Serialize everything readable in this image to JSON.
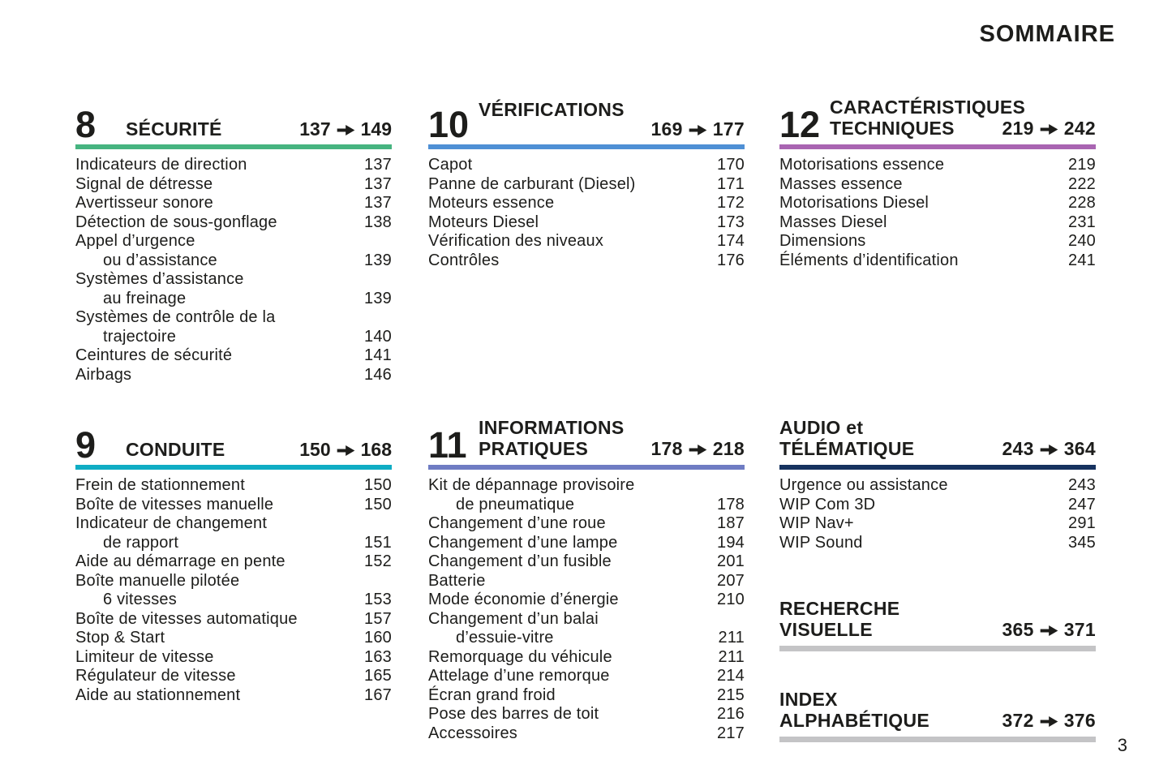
{
  "page": {
    "title": "SOMMAIRE",
    "page_number": "3"
  },
  "text_color": "#1d1d1b",
  "sections": [
    {
      "number": "8",
      "title_lines": [
        "SÉCURITÉ"
      ],
      "range": {
        "from": "137",
        "to": "149"
      },
      "color": "#46b480",
      "items": [
        {
          "lines": [
            "Indicateurs de direction"
          ],
          "page": "137"
        },
        {
          "lines": [
            "Signal de détresse"
          ],
          "page": "137"
        },
        {
          "lines": [
            "Avertisseur sonore"
          ],
          "page": "137"
        },
        {
          "lines": [
            "Détection de sous-gonflage"
          ],
          "page": "138"
        },
        {
          "lines": [
            "Appel d’urgence",
            "ou d’assistance"
          ],
          "page": "139"
        },
        {
          "lines": [
            "Systèmes d’assistance",
            "au freinage"
          ],
          "page": "139"
        },
        {
          "lines": [
            "Systèmes de contrôle de la",
            "trajectoire"
          ],
          "page": "140"
        },
        {
          "lines": [
            "Ceintures de sécurité"
          ],
          "page": "141"
        },
        {
          "lines": [
            "Airbags"
          ],
          "page": "146"
        }
      ]
    },
    {
      "number": "9",
      "title_lines": [
        "CONDUITE"
      ],
      "range": {
        "from": "150",
        "to": "168"
      },
      "color": "#0fadc4",
      "items": [
        {
          "lines": [
            "Frein de stationnement"
          ],
          "page": "150"
        },
        {
          "lines": [
            "Boîte de vitesses manuelle"
          ],
          "page": "150"
        },
        {
          "lines": [
            "Indicateur de changement",
            "de rapport"
          ],
          "page": "151"
        },
        {
          "lines": [
            "Aide au démarrage en pente"
          ],
          "page": "152"
        },
        {
          "lines": [
            "Boîte manuelle pilotée",
            "6 vitesses"
          ],
          "page": "153"
        },
        {
          "lines": [
            "Boîte de vitesses automatique"
          ],
          "page": "157"
        },
        {
          "lines": [
            "Stop & Start"
          ],
          "page": "160"
        },
        {
          "lines": [
            "Limiteur de vitesse"
          ],
          "page": "163"
        },
        {
          "lines": [
            "Régulateur de vitesse"
          ],
          "page": "165"
        },
        {
          "lines": [
            "Aide au stationnement"
          ],
          "page": "167"
        }
      ]
    },
    {
      "number": "10",
      "title_lines": [
        "VÉRIFICATIONS"
      ],
      "range": {
        "from": "169",
        "to": "177"
      },
      "color": "#4f90d5",
      "items": [
        {
          "lines": [
            "Capot"
          ],
          "page": "170"
        },
        {
          "lines": [
            "Panne de carburant (Diesel)"
          ],
          "page": "171"
        },
        {
          "lines": [
            "Moteurs essence"
          ],
          "page": "172"
        },
        {
          "lines": [
            "Moteurs Diesel"
          ],
          "page": "173"
        },
        {
          "lines": [
            "Vérification des niveaux"
          ],
          "page": "174"
        },
        {
          "lines": [
            "Contrôles"
          ],
          "page": "176"
        }
      ]
    },
    {
      "number": "11",
      "title_lines": [
        "INFORMATIONS",
        "PRATIQUES"
      ],
      "range": {
        "from": "178",
        "to": "218"
      },
      "color": "#6f7cc3",
      "items": [
        {
          "lines": [
            "Kit de dépannage provisoire",
            "de pneumatique"
          ],
          "page": "178"
        },
        {
          "lines": [
            "Changement d’une roue"
          ],
          "page": "187"
        },
        {
          "lines": [
            "Changement d’une lampe"
          ],
          "page": "194"
        },
        {
          "lines": [
            "Changement d’un fusible"
          ],
          "page": "201"
        },
        {
          "lines": [
            "Batterie"
          ],
          "page": "207"
        },
        {
          "lines": [
            "Mode économie d’énergie"
          ],
          "page": "210"
        },
        {
          "lines": [
            "Changement d’un balai",
            "d’essuie-vitre"
          ],
          "page": "211"
        },
        {
          "lines": [
            "Remorquage du véhicule"
          ],
          "page": "211"
        },
        {
          "lines": [
            "Attelage d’une remorque"
          ],
          "page": "214"
        },
        {
          "lines": [
            "Écran grand froid"
          ],
          "page": "215"
        },
        {
          "lines": [
            "Pose des barres de toit"
          ],
          "page": "216"
        },
        {
          "lines": [
            "Accessoires"
          ],
          "page": "217"
        }
      ]
    },
    {
      "number": "12",
      "title_lines": [
        "CARACTÉRISTIQUES",
        "TECHNIQUES"
      ],
      "range": {
        "from": "219",
        "to": "242"
      },
      "color": "#a965b2",
      "items": [
        {
          "lines": [
            "Motorisations essence"
          ],
          "page": "219"
        },
        {
          "lines": [
            "Masses essence"
          ],
          "page": "222"
        },
        {
          "lines": [
            "Motorisations Diesel"
          ],
          "page": "228"
        },
        {
          "lines": [
            "Masses Diesel"
          ],
          "page": "231"
        },
        {
          "lines": [
            "Dimensions"
          ],
          "page": "240"
        },
        {
          "lines": [
            "Éléments d’identification"
          ],
          "page": "241"
        }
      ]
    },
    {
      "number": "",
      "title_lines": [
        "AUDIO et",
        "TÉLÉMATIQUE"
      ],
      "range": {
        "from": "243",
        "to": "364"
      },
      "color": "#16325f",
      "items": [
        {
          "lines": [
            "Urgence ou assistance"
          ],
          "page": "243"
        },
        {
          "lines": [
            "WIP Com 3D"
          ],
          "page": "247"
        },
        {
          "lines": [
            "WIP Nav+"
          ],
          "page": "291"
        },
        {
          "lines": [
            "WIP Sound"
          ],
          "page": "345"
        }
      ]
    },
    {
      "number": "",
      "title_lines": [
        "RECHERCHE",
        "VISUELLE"
      ],
      "range": {
        "from": "365",
        "to": "371"
      },
      "color": "#c4c4c6",
      "items": []
    },
    {
      "number": "",
      "title_lines": [
        "INDEX",
        "ALPHABÉTIQUE"
      ],
      "range": {
        "from": "372",
        "to": "376"
      },
      "color": "#c4c4c6",
      "items": []
    }
  ]
}
